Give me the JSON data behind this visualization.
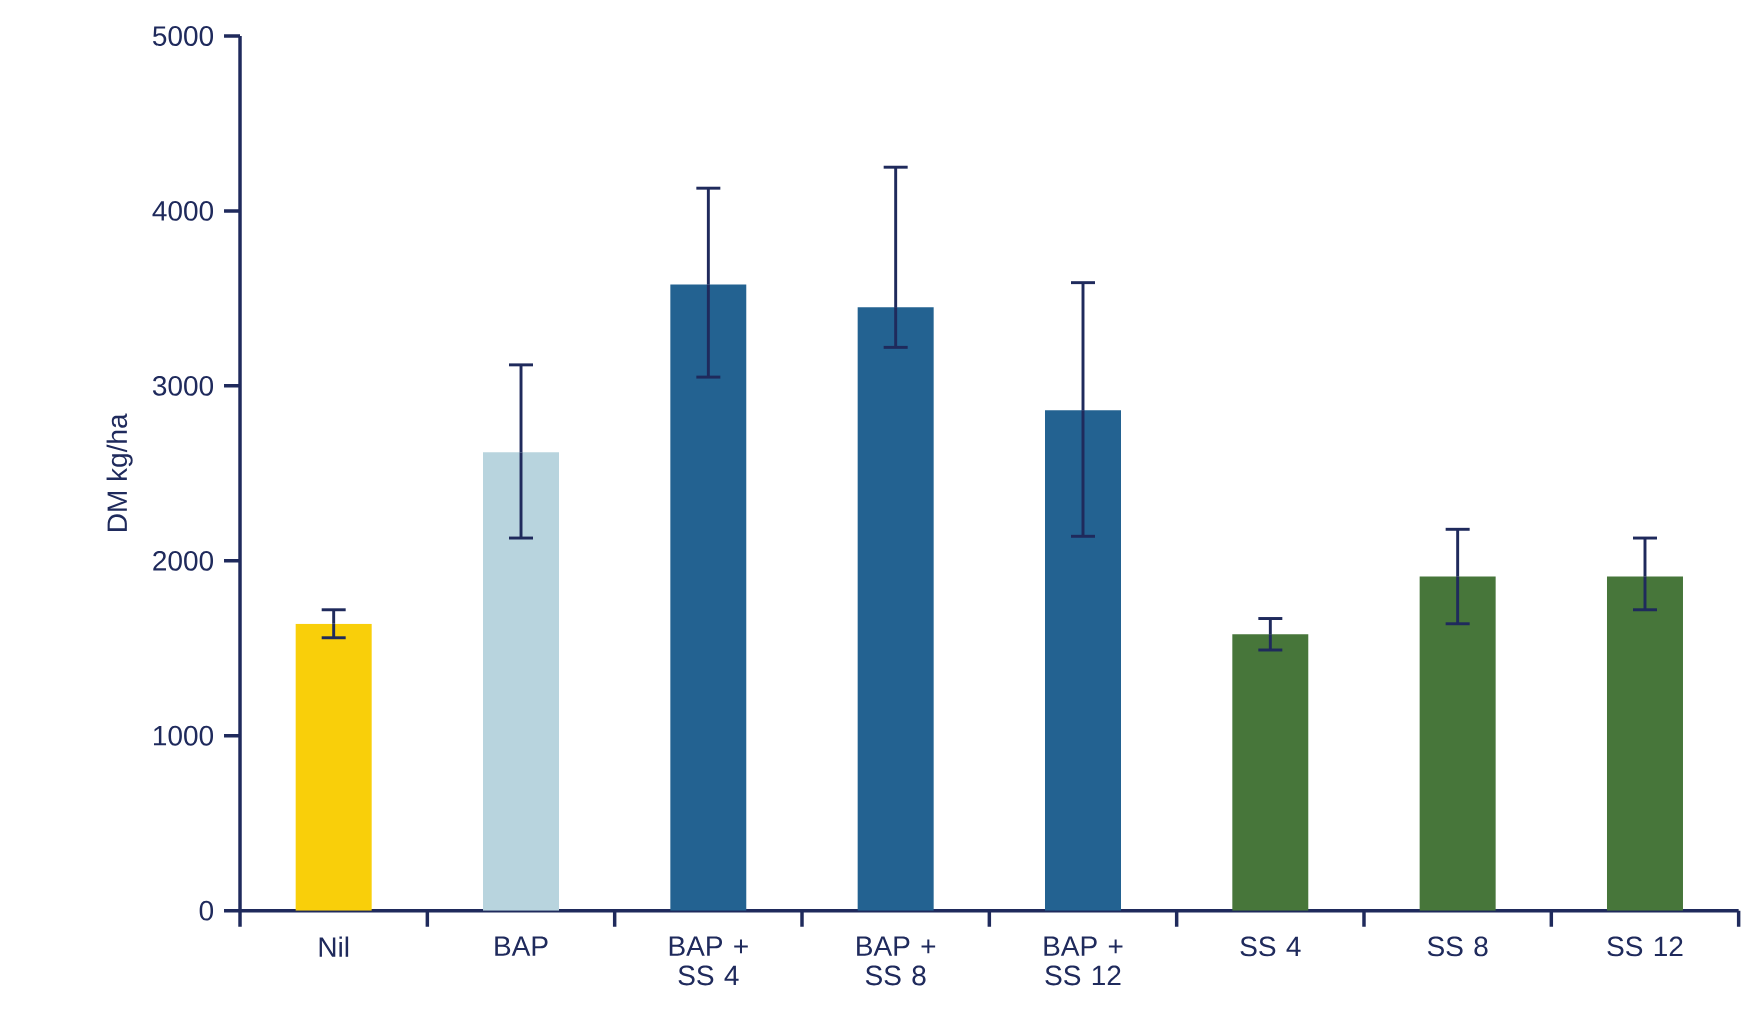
{
  "chart_data": {
    "type": "bar",
    "ylabel": "DM kg/ha",
    "categories": [
      "Nil",
      "BAP",
      "BAP + SS 4",
      "BAP + SS 8",
      "BAP + SS 12",
      "SS 4",
      "SS 8",
      "SS 12"
    ],
    "values": [
      1640,
      2620,
      3580,
      3450,
      2860,
      1580,
      1910,
      1910
    ],
    "errors": [
      [
        1560,
        1720
      ],
      [
        2130,
        3120
      ],
      [
        3050,
        4130
      ],
      [
        3220,
        4250
      ],
      [
        2140,
        3590
      ],
      [
        1490,
        1670
      ],
      [
        1640,
        2180
      ],
      [
        1720,
        2130
      ]
    ],
    "colors": [
      "#f9cf0a",
      "#b8d4de",
      "#236291",
      "#236291",
      "#236291",
      "#47763a",
      "#47763a",
      "#47763a"
    ],
    "ylim": [
      0,
      5000
    ],
    "yticks": [
      0,
      1000,
      2000,
      3000,
      4000,
      5000
    ]
  }
}
